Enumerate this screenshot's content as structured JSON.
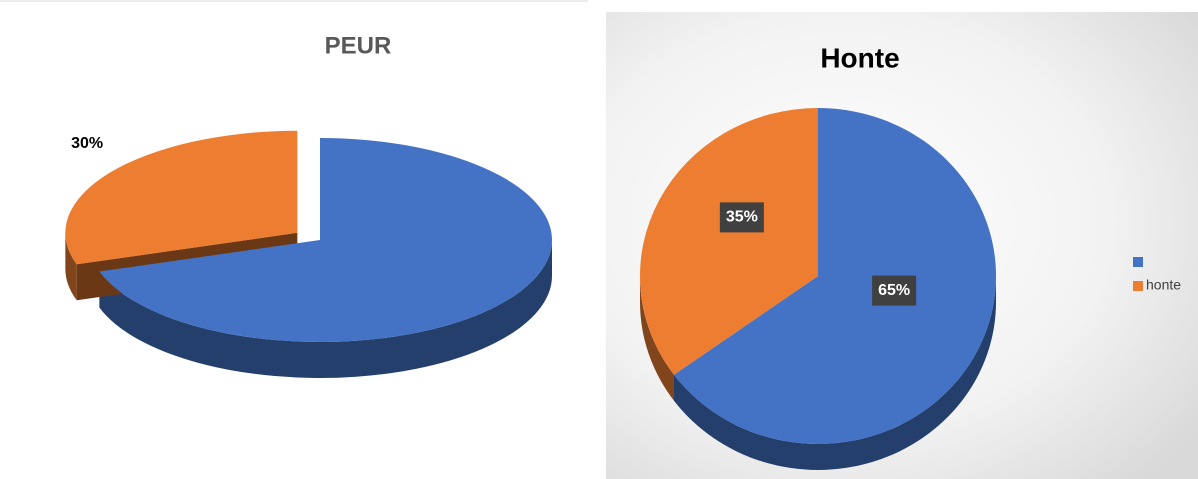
{
  "chart_data": [
    {
      "type": "pie",
      "title": "PEUR",
      "values": [
        70,
        30
      ],
      "value_labels": [
        null,
        "30%"
      ],
      "colors": [
        "#4472c4",
        "#ed7d31"
      ]
    },
    {
      "type": "pie",
      "title": "Honte",
      "categories": [
        null,
        "honte"
      ],
      "values": [
        65,
        35
      ],
      "value_labels": [
        "65%",
        "35%"
      ],
      "colors": [
        "#4472c4",
        "#ed7d31"
      ],
      "legend": "right"
    }
  ]
}
